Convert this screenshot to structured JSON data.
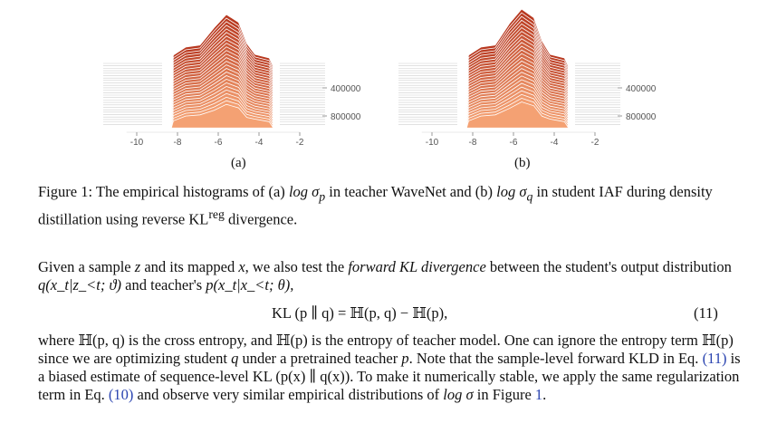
{
  "figures": [
    {
      "id": "a",
      "x_ticks": [
        "-10",
        "-8",
        "-6",
        "-4",
        "-2"
      ],
      "y_ticks": [
        "400000",
        "800000"
      ],
      "sublabel": "(a)"
    },
    {
      "id": "b",
      "x_ticks": [
        "-10",
        "-8",
        "-6",
        "-4",
        "-2"
      ],
      "y_ticks": [
        "400000",
        "800000"
      ],
      "sublabel": "(b)"
    }
  ],
  "colors": {
    "front": "#f4a173",
    "back": "#b8381f",
    "axis": "#999999",
    "link": "#2a44b0"
  },
  "caption": {
    "label": "Figure 1:",
    "text1": "The empirical histograms of (a)",
    "math1": "log σ",
    "sub1": "p",
    "text2": "in teacher WaveNet and (b)",
    "math2": "log σ",
    "sub2": "q",
    "text3": "in student IAF during density distillation using reverse KL",
    "sup": "reg",
    "text4": "divergence."
  },
  "para1": {
    "t1": "Given a sample",
    "z": "z",
    "t2": "and its mapped",
    "x": "x",
    "t3": ", we also test the",
    "emph": "forward KL divergence",
    "t4": "between the student's output distribution",
    "q_expr": "q(x_t|z_<t; ϑ)",
    "t5": "and teacher's",
    "p_expr": "p(x_t|x_<t; θ),"
  },
  "equation": {
    "body": "KL (p ∥ q) = ℍ(p, q) − ℍ(p),",
    "number": "(11)"
  },
  "para2": {
    "t1": "where",
    "hpq": "ℍ(p, q)",
    "t2": "is the cross entropy, and",
    "hp": "ℍ(p)",
    "t3": "is the entropy of teacher model. One can ignore the entropy term",
    "hp2": "ℍ(p)",
    "t4": "since we are optimizing student",
    "q": "q",
    "t5": "under a pretrained teacher",
    "p": "p",
    "t6": ". Note that the sample-level forward KLD in Eq.",
    "ref1": "(11)",
    "t7": "is a biased estimate of sequence-level",
    "kl": "KL (p(x) ∥ q(x))",
    "t8": ". To make it numerically stable, we apply the same regularization term in Eq.",
    "ref2": "(10)",
    "t9": "and observe very similar empirical distributions of",
    "logsig": "log σ",
    "t10": "in Figure",
    "ref3": "1",
    "t11": "."
  }
}
